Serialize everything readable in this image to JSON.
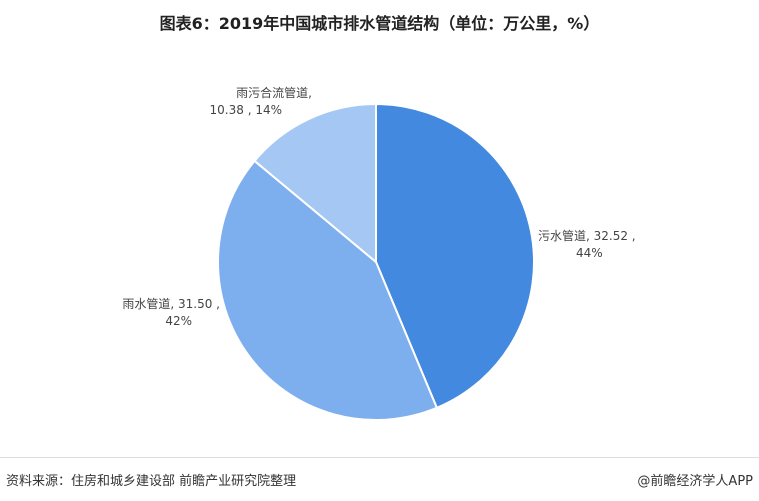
{
  "chart_data": {
    "type": "pie",
    "title": "图表6：2019年中国城市排水管道结构（单位：万公里，%）",
    "slices": [
      {
        "name": "污水管道",
        "value": 32.52,
        "percent": "44%",
        "color": "#4389e0"
      },
      {
        "name": "雨水管道",
        "value": 31.5,
        "percent": "42%",
        "color": "#7daeee"
      },
      {
        "name": "雨污合流管道",
        "value": 10.38,
        "percent": "14%",
        "color": "#a5c7f4"
      }
    ],
    "start": "top",
    "direction": "clockwise"
  },
  "footer": {
    "source": "资料来源：住房和城乡建设部 前瞻产业研究院整理",
    "brand": "@前瞻经济学人APP"
  }
}
